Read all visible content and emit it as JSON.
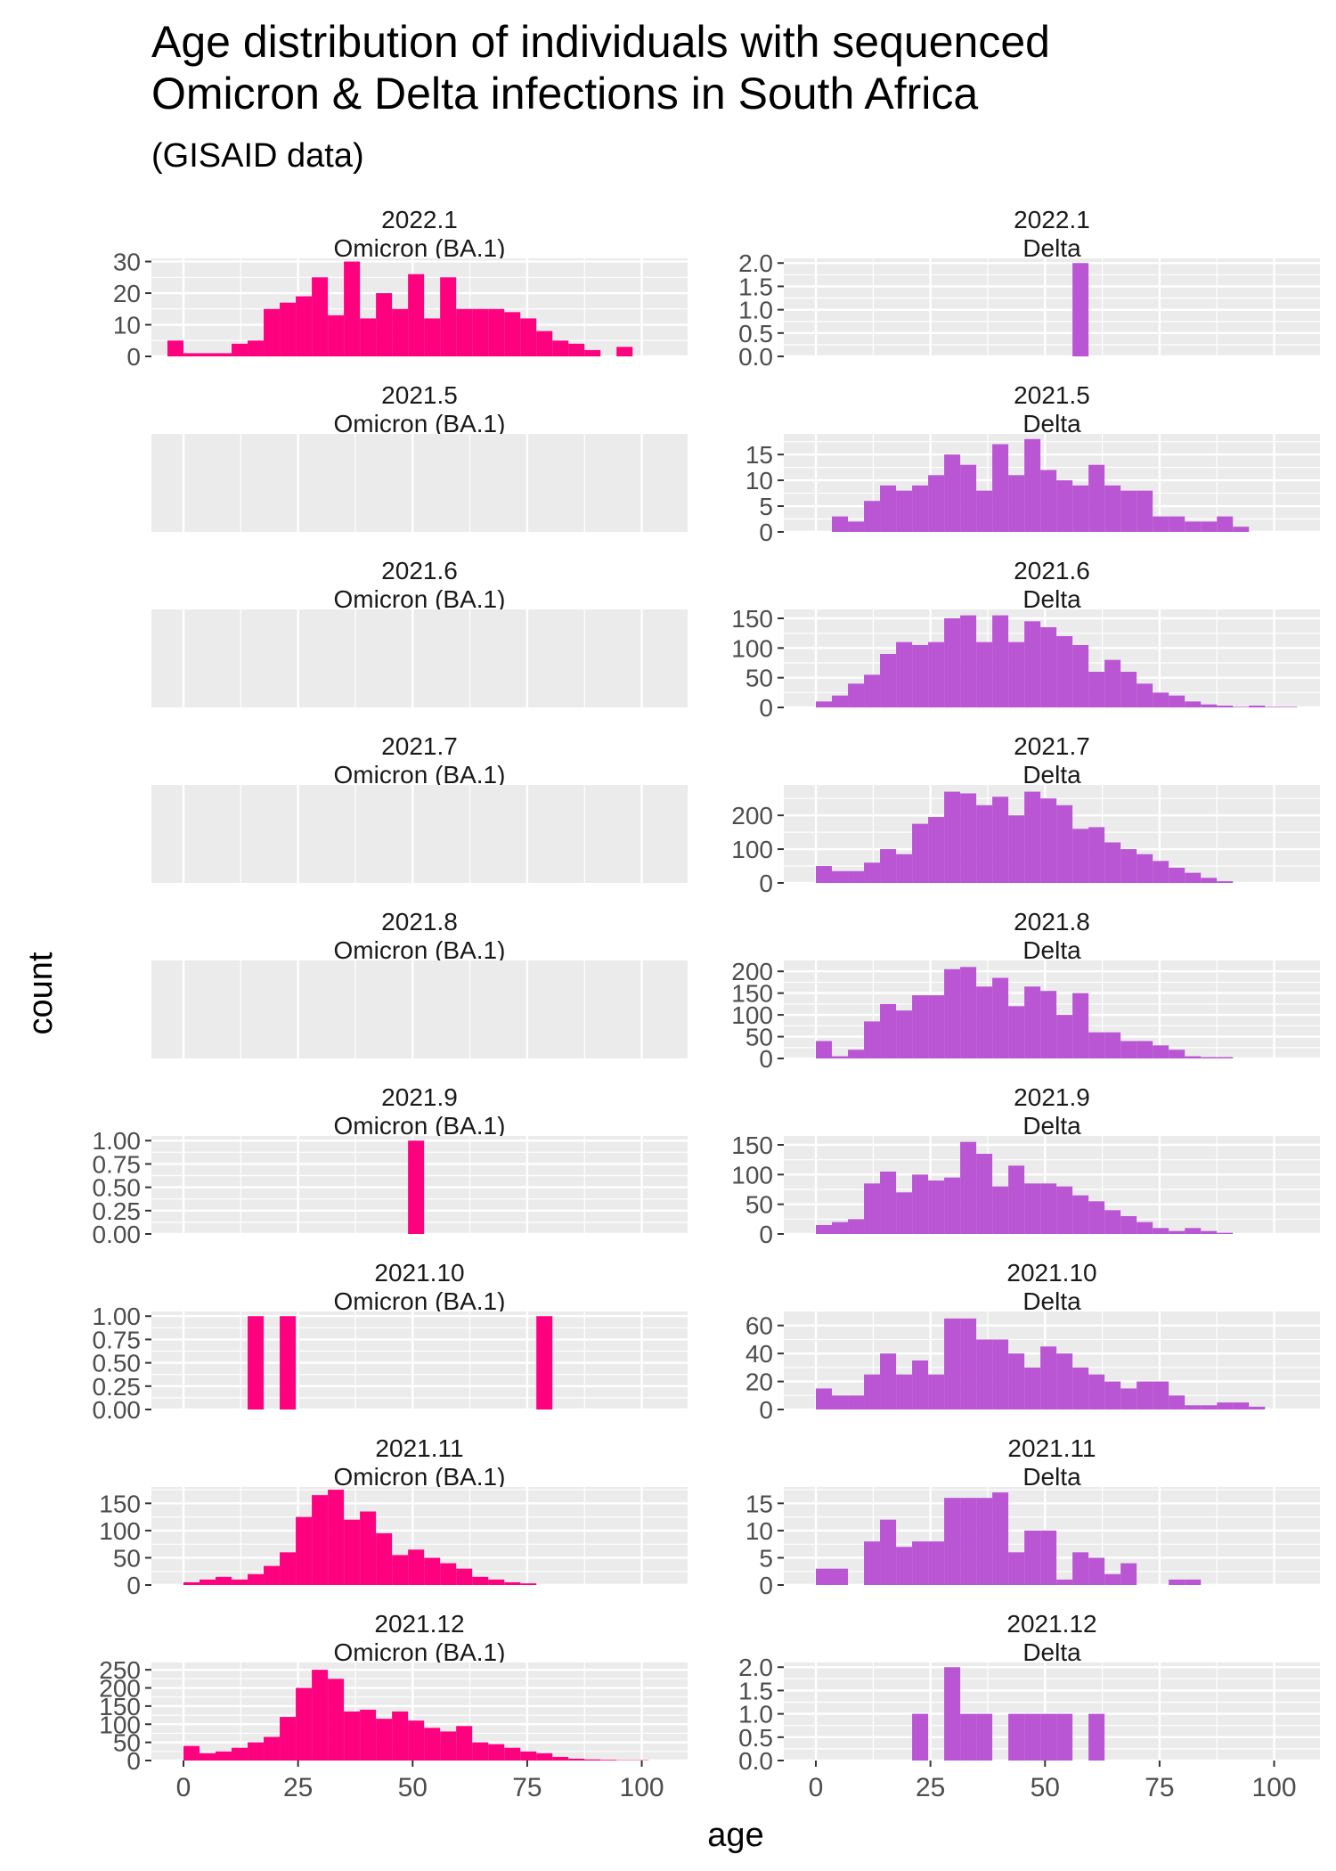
{
  "title_line1": "Age distribution of individuals with sequenced",
  "title_line2": "Omicron & Delta infections in South Africa",
  "subtitle": "(GISAID data)",
  "colors": {
    "omicron": "#FF007F",
    "delta": "#BA55D3",
    "panel_bg": "#EBEBEB",
    "grid": "#FFFFFF"
  },
  "chart_data": {
    "type": "bar",
    "subtype": "faceted histogram",
    "xlabel": "age",
    "ylabel": "count",
    "x_ticks": [
      0,
      25,
      50,
      75,
      100
    ],
    "xlim": [
      -7,
      110
    ],
    "bin_width": 3.5,
    "bin_starts": [
      -3.5,
      0,
      3.5,
      7,
      10.5,
      14,
      17.5,
      21,
      24.5,
      28,
      31.5,
      35,
      38.5,
      42,
      45.5,
      49,
      52.5,
      56,
      59.5,
      63,
      66.5,
      70,
      73.5,
      77,
      80.5,
      84,
      87.5,
      91,
      94.5,
      98,
      101.5,
      105
    ],
    "columns": [
      "Omicron (BA.1)",
      "Delta"
    ],
    "rows": [
      "2022.1",
      "2021.5",
      "2021.6",
      "2021.7",
      "2021.8",
      "2021.9",
      "2021.10",
      "2021.11",
      "2021.12"
    ],
    "panels": [
      {
        "row": "2022.1",
        "variant": "Omicron (BA.1)",
        "yticks": [
          0,
          10,
          20,
          30
        ],
        "ymax": 31,
        "counts": [
          5,
          1,
          1,
          1,
          4,
          5,
          15,
          17,
          19,
          25,
          13,
          30,
          12,
          20,
          15,
          26,
          12,
          25,
          15,
          15,
          15,
          14,
          12,
          8,
          5,
          4,
          2,
          0,
          3,
          0,
          0,
          0
        ]
      },
      {
        "row": "2022.1",
        "variant": "Delta",
        "yticks": [
          0,
          0.5,
          1.0,
          1.5,
          2.0
        ],
        "ytick_labels": [
          "0.0",
          "0.5",
          "1.0",
          "1.5",
          "2.0"
        ],
        "ymax": 2.1,
        "counts": [
          0,
          0,
          0,
          0,
          0,
          0,
          0,
          0,
          0,
          0,
          0,
          0,
          0,
          0,
          0,
          0,
          0,
          2,
          0,
          0,
          0,
          0,
          0,
          0,
          0,
          0,
          0,
          0,
          0,
          0,
          0,
          0
        ]
      },
      {
        "row": "2021.5",
        "variant": "Omicron (BA.1)",
        "yticks": [],
        "ymax": 1,
        "counts": []
      },
      {
        "row": "2021.5",
        "variant": "Delta",
        "yticks": [
          0,
          5,
          10,
          15
        ],
        "ymax": 19,
        "counts": [
          0,
          0,
          3,
          2,
          6,
          9,
          8,
          9,
          11,
          15,
          13,
          8,
          17,
          11,
          18,
          12,
          10,
          9,
          13,
          9,
          8,
          8,
          3,
          3,
          2,
          2,
          3,
          1,
          0,
          0,
          0,
          0
        ]
      },
      {
        "row": "2021.6",
        "variant": "Omicron (BA.1)",
        "yticks": [],
        "ymax": 1,
        "counts": []
      },
      {
        "row": "2021.6",
        "variant": "Delta",
        "yticks": [
          0,
          50,
          100,
          150
        ],
        "ymax": 165,
        "counts": [
          0,
          10,
          20,
          40,
          55,
          90,
          110,
          105,
          110,
          150,
          155,
          110,
          155,
          110,
          145,
          135,
          120,
          105,
          60,
          80,
          60,
          40,
          25,
          20,
          10,
          5,
          3,
          1,
          3,
          1,
          1,
          0
        ]
      },
      {
        "row": "2021.7",
        "variant": "Omicron (BA.1)",
        "yticks": [],
        "ymax": 1,
        "counts": []
      },
      {
        "row": "2021.7",
        "variant": "Delta",
        "yticks": [
          0,
          100,
          200
        ],
        "ymax": 290,
        "counts": [
          0,
          50,
          35,
          35,
          60,
          100,
          85,
          175,
          195,
          270,
          265,
          230,
          255,
          200,
          270,
          250,
          230,
          160,
          165,
          120,
          100,
          85,
          65,
          45,
          30,
          15,
          5,
          0,
          0,
          0,
          0,
          0
        ]
      },
      {
        "row": "2021.8",
        "variant": "Omicron (BA.1)",
        "yticks": [],
        "ymax": 1,
        "counts": []
      },
      {
        "row": "2021.8",
        "variant": "Delta",
        "yticks": [
          0,
          50,
          100,
          150,
          200
        ],
        "ymax": 225,
        "counts": [
          0,
          40,
          5,
          20,
          85,
          125,
          110,
          145,
          145,
          205,
          210,
          165,
          185,
          120,
          165,
          155,
          100,
          150,
          60,
          60,
          40,
          40,
          30,
          20,
          5,
          3,
          3,
          0,
          0,
          0,
          0,
          0
        ]
      },
      {
        "row": "2021.9",
        "variant": "Omicron (BA.1)",
        "yticks": [
          0,
          0.25,
          0.5,
          0.75,
          1.0
        ],
        "ytick_labels": [
          "0.00",
          "0.25",
          "0.50",
          "0.75",
          "1.00"
        ],
        "ymax": 1.05,
        "counts": [
          0,
          0,
          0,
          0,
          0,
          0,
          0,
          0,
          0,
          0,
          0,
          0,
          0,
          0,
          0,
          1,
          0,
          0,
          0,
          0,
          0,
          0,
          0,
          0,
          0,
          0,
          0,
          0,
          0,
          0,
          0,
          0
        ]
      },
      {
        "row": "2021.9",
        "variant": "Delta",
        "yticks": [
          0,
          50,
          100,
          150
        ],
        "ymax": 165,
        "counts": [
          0,
          15,
          20,
          25,
          85,
          105,
          70,
          100,
          90,
          95,
          155,
          135,
          80,
          115,
          85,
          85,
          80,
          65,
          55,
          40,
          30,
          20,
          10,
          5,
          10,
          5,
          2,
          0,
          0,
          0,
          0,
          0
        ]
      },
      {
        "row": "2021.10",
        "variant": "Omicron (BA.1)",
        "yticks": [
          0,
          0.25,
          0.5,
          0.75,
          1.0
        ],
        "ytick_labels": [
          "0.00",
          "0.25",
          "0.50",
          "0.75",
          "1.00"
        ],
        "ymax": 1.05,
        "counts": [
          0,
          0,
          0,
          0,
          0,
          1,
          0,
          1,
          0,
          0,
          0,
          0,
          0,
          0,
          0,
          0,
          0,
          0,
          0,
          0,
          0,
          0,
          0,
          1,
          0,
          0,
          0,
          0,
          0,
          0,
          0,
          0
        ]
      },
      {
        "row": "2021.10",
        "variant": "Delta",
        "yticks": [
          0,
          20,
          40,
          60
        ],
        "ymax": 70,
        "counts": [
          0,
          15,
          10,
          10,
          25,
          40,
          25,
          35,
          25,
          65,
          65,
          50,
          50,
          40,
          30,
          45,
          40,
          30,
          25,
          20,
          15,
          20,
          20,
          10,
          3,
          3,
          5,
          5,
          2,
          0,
          0,
          0
        ]
      },
      {
        "row": "2021.11",
        "variant": "Omicron (BA.1)",
        "yticks": [
          0,
          50,
          100,
          150
        ],
        "ymax": 180,
        "counts": [
          0,
          5,
          10,
          15,
          10,
          20,
          35,
          60,
          125,
          165,
          175,
          120,
          135,
          95,
          55,
          65,
          50,
          40,
          30,
          15,
          10,
          5,
          3,
          0,
          0,
          0,
          0,
          0,
          0,
          0,
          0,
          0
        ]
      },
      {
        "row": "2021.11",
        "variant": "Delta",
        "yticks": [
          0,
          5,
          10,
          15
        ],
        "ymax": 18,
        "counts": [
          0,
          3,
          3,
          0,
          8,
          12,
          7,
          8,
          8,
          16,
          16,
          16,
          17,
          6,
          10,
          10,
          1,
          6,
          5,
          2,
          4,
          0,
          0,
          1,
          1,
          0,
          0,
          0,
          0,
          0,
          0,
          0
        ]
      },
      {
        "row": "2021.12",
        "variant": "Omicron (BA.1)",
        "yticks": [
          0,
          50,
          100,
          150,
          200,
          250
        ],
        "ymax": 270,
        "counts": [
          0,
          40,
          20,
          25,
          35,
          50,
          65,
          120,
          200,
          250,
          225,
          135,
          140,
          115,
          135,
          110,
          90,
          80,
          95,
          50,
          45,
          35,
          25,
          20,
          10,
          5,
          3,
          2,
          1,
          1,
          0,
          0
        ]
      },
      {
        "row": "2021.12",
        "variant": "Delta",
        "yticks": [
          0,
          0.5,
          1.0,
          1.5,
          2.0
        ],
        "ytick_labels": [
          "0.0",
          "0.5",
          "1.0",
          "1.5",
          "2.0"
        ],
        "ymax": 2.1,
        "counts": [
          0,
          0,
          0,
          0,
          0,
          0,
          0,
          1,
          0,
          2,
          1,
          1,
          0,
          1,
          1,
          1,
          1,
          0,
          1,
          0,
          0,
          0,
          0,
          0,
          0,
          0,
          0,
          0,
          0,
          0,
          0,
          0
        ]
      }
    ]
  }
}
